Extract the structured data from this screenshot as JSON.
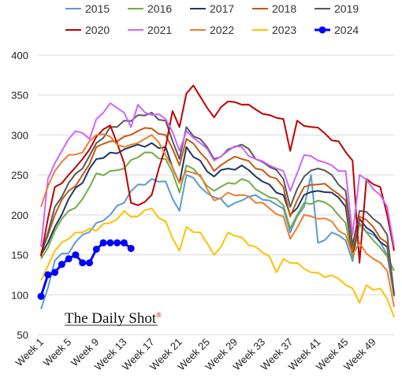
{
  "chart_data": {
    "type": "line",
    "title": "",
    "xlabel": "",
    "ylabel": "",
    "ylim": [
      50,
      400
    ],
    "yticks": [
      50,
      100,
      150,
      200,
      250,
      300,
      350,
      400
    ],
    "xlim": [
      1,
      52
    ],
    "xticks": [
      1,
      5,
      9,
      13,
      17,
      21,
      25,
      29,
      33,
      37,
      41,
      45,
      49
    ],
    "xtick_labels": [
      "Week 1",
      "Week 5",
      "Week 9",
      "Week 13",
      "Week 17",
      "Week 21",
      "Week 25",
      "Week 29",
      "Week 33",
      "Week 37",
      "Week 41",
      "Week 45",
      "Week 49"
    ],
    "grid": "horizontal",
    "legend_position": "top",
    "series": [
      {
        "name": "2015",
        "color": "#5b9bd5",
        "key": [
          [
            1,
            82
          ],
          [
            3,
            143
          ],
          [
            5,
            152
          ],
          [
            7,
            175
          ],
          [
            9,
            190
          ],
          [
            11,
            200
          ],
          [
            13,
            215
          ],
          [
            15,
            238
          ],
          [
            17,
            245
          ],
          [
            19,
            242
          ],
          [
            21,
            205
          ],
          [
            22,
            250
          ],
          [
            24,
            235
          ],
          [
            26,
            222
          ],
          [
            28,
            210
          ],
          [
            30,
            218
          ],
          [
            32,
            225
          ],
          [
            34,
            218
          ],
          [
            36,
            208
          ],
          [
            37,
            178
          ],
          [
            39,
            210
          ],
          [
            40,
            250
          ],
          [
            41,
            165
          ],
          [
            43,
            178
          ],
          [
            45,
            168
          ],
          [
            46,
            142
          ],
          [
            47,
            190
          ],
          [
            49,
            175
          ],
          [
            51,
            150
          ],
          [
            52,
            98
          ]
        ]
      },
      {
        "name": "2016",
        "color": "#70ad47",
        "key": [
          [
            1,
            145
          ],
          [
            3,
            180
          ],
          [
            5,
            205
          ],
          [
            7,
            220
          ],
          [
            9,
            252
          ],
          [
            11,
            255
          ],
          [
            13,
            258
          ],
          [
            15,
            272
          ],
          [
            17,
            278
          ],
          [
            19,
            270
          ],
          [
            21,
            228
          ],
          [
            22,
            262
          ],
          [
            24,
            248
          ],
          [
            26,
            230
          ],
          [
            28,
            240
          ],
          [
            30,
            245
          ],
          [
            32,
            232
          ],
          [
            34,
            222
          ],
          [
            36,
            212
          ],
          [
            37,
            183
          ],
          [
            39,
            215
          ],
          [
            41,
            218
          ],
          [
            43,
            210
          ],
          [
            45,
            190
          ],
          [
            46,
            145
          ],
          [
            47,
            188
          ],
          [
            49,
            168
          ],
          [
            51,
            148
          ],
          [
            52,
            130
          ]
        ]
      },
      {
        "name": "2017",
        "color": "#1f3864",
        "key": [
          [
            1,
            150
          ],
          [
            3,
            185
          ],
          [
            5,
            220
          ],
          [
            7,
            240
          ],
          [
            9,
            270
          ],
          [
            11,
            278
          ],
          [
            13,
            282
          ],
          [
            15,
            288
          ],
          [
            17,
            290
          ],
          [
            19,
            285
          ],
          [
            21,
            240
          ],
          [
            22,
            285
          ],
          [
            24,
            268
          ],
          [
            26,
            248
          ],
          [
            28,
            258
          ],
          [
            30,
            262
          ],
          [
            32,
            248
          ],
          [
            34,
            238
          ],
          [
            36,
            225
          ],
          [
            37,
            200
          ],
          [
            39,
            225
          ],
          [
            41,
            230
          ],
          [
            43,
            228
          ],
          [
            45,
            210
          ],
          [
            46,
            150
          ],
          [
            47,
            195
          ],
          [
            49,
            178
          ],
          [
            51,
            160
          ],
          [
            52,
            100
          ]
        ]
      },
      {
        "name": "2018",
        "color": "#c55a11",
        "key": [
          [
            1,
            152
          ],
          [
            3,
            200
          ],
          [
            5,
            230
          ],
          [
            7,
            250
          ],
          [
            9,
            285
          ],
          [
            11,
            292
          ],
          [
            13,
            298
          ],
          [
            15,
            305
          ],
          [
            17,
            308
          ],
          [
            19,
            300
          ],
          [
            21,
            262
          ],
          [
            22,
            295
          ],
          [
            24,
            278
          ],
          [
            26,
            255
          ],
          [
            28,
            268
          ],
          [
            30,
            270
          ],
          [
            32,
            258
          ],
          [
            34,
            248
          ],
          [
            36,
            235
          ],
          [
            37,
            198
          ],
          [
            39,
            235
          ],
          [
            41,
            238
          ],
          [
            43,
            232
          ],
          [
            45,
            218
          ],
          [
            46,
            155
          ],
          [
            47,
            198
          ],
          [
            49,
            185
          ],
          [
            51,
            165
          ],
          [
            52,
            98
          ]
        ]
      },
      {
        "name": "2019",
        "color": "#595959",
        "key": [
          [
            1,
            150
          ],
          [
            3,
            210
          ],
          [
            5,
            240
          ],
          [
            7,
            258
          ],
          [
            9,
            290
          ],
          [
            11,
            310
          ],
          [
            13,
            318
          ],
          [
            15,
            325
          ],
          [
            17,
            328
          ],
          [
            19,
            318
          ],
          [
            21,
            270
          ],
          [
            22,
            310
          ],
          [
            24,
            295
          ],
          [
            26,
            270
          ],
          [
            28,
            282
          ],
          [
            30,
            288
          ],
          [
            32,
            270
          ],
          [
            34,
            260
          ],
          [
            36,
            245
          ],
          [
            37,
            210
          ],
          [
            39,
            248
          ],
          [
            41,
            258
          ],
          [
            43,
            250
          ],
          [
            45,
            230
          ],
          [
            46,
            162
          ],
          [
            47,
            205
          ],
          [
            49,
            195
          ],
          [
            51,
            175
          ],
          [
            52,
            100
          ]
        ]
      },
      {
        "name": "2020",
        "color": "#c00000",
        "key": [
          [
            1,
            148
          ],
          [
            3,
            235
          ],
          [
            5,
            250
          ],
          [
            7,
            270
          ],
          [
            9,
            298
          ],
          [
            11,
            312
          ],
          [
            13,
            265
          ],
          [
            14,
            215
          ],
          [
            15,
            212
          ],
          [
            17,
            225
          ],
          [
            19,
            285
          ],
          [
            20,
            330
          ],
          [
            21,
            310
          ],
          [
            22,
            352
          ],
          [
            23,
            362
          ],
          [
            24,
            348
          ],
          [
            26,
            322
          ],
          [
            28,
            342
          ],
          [
            30,
            338
          ],
          [
            32,
            332
          ],
          [
            34,
            325
          ],
          [
            36,
            320
          ],
          [
            37,
            280
          ],
          [
            38,
            318
          ],
          [
            40,
            310
          ],
          [
            42,
            302
          ],
          [
            44,
            292
          ],
          [
            46,
            268
          ],
          [
            47,
            140
          ],
          [
            48,
            245
          ],
          [
            50,
            235
          ],
          [
            51,
            200
          ],
          [
            52,
            155
          ]
        ]
      },
      {
        "name": "2021",
        "color": "#cc66ff",
        "key": [
          [
            1,
            160
          ],
          [
            2,
            245
          ],
          [
            4,
            280
          ],
          [
            6,
            305
          ],
          [
            8,
            295
          ],
          [
            9,
            320
          ],
          [
            11,
            340
          ],
          [
            13,
            328
          ],
          [
            14,
            310
          ],
          [
            15,
            338
          ],
          [
            17,
            325
          ],
          [
            19,
            320
          ],
          [
            21,
            280
          ],
          [
            22,
            305
          ],
          [
            24,
            290
          ],
          [
            26,
            268
          ],
          [
            28,
            280
          ],
          [
            30,
            285
          ],
          [
            32,
            270
          ],
          [
            34,
            262
          ],
          [
            36,
            255
          ],
          [
            37,
            230
          ],
          [
            39,
            275
          ],
          [
            41,
            268
          ],
          [
            43,
            262
          ],
          [
            45,
            255
          ],
          [
            46,
            175
          ],
          [
            47,
            250
          ],
          [
            49,
            232
          ],
          [
            51,
            210
          ],
          [
            52,
            160
          ]
        ]
      },
      {
        "name": "2022",
        "color": "#ed7d31",
        "key": [
          [
            1,
            210
          ],
          [
            3,
            255
          ],
          [
            5,
            275
          ],
          [
            7,
            278
          ],
          [
            9,
            300
          ],
          [
            11,
            298
          ],
          [
            13,
            285
          ],
          [
            15,
            290
          ],
          [
            17,
            300
          ],
          [
            19,
            275
          ],
          [
            21,
            240
          ],
          [
            22,
            255
          ],
          [
            24,
            250
          ],
          [
            26,
            218
          ],
          [
            28,
            228
          ],
          [
            30,
            225
          ],
          [
            32,
            215
          ],
          [
            34,
            208
          ],
          [
            36,
            198
          ],
          [
            37,
            170
          ],
          [
            39,
            200
          ],
          [
            41,
            195
          ],
          [
            43,
            192
          ],
          [
            45,
            175
          ],
          [
            46,
            150
          ],
          [
            47,
            165
          ],
          [
            49,
            145
          ],
          [
            51,
            130
          ],
          [
            52,
            85
          ]
        ]
      },
      {
        "name": "2023",
        "color": "#ffc000",
        "key": [
          [
            1,
            118
          ],
          [
            3,
            155
          ],
          [
            5,
            170
          ],
          [
            7,
            178
          ],
          [
            9,
            180
          ],
          [
            11,
            190
          ],
          [
            13,
            205
          ],
          [
            15,
            198
          ],
          [
            17,
            208
          ],
          [
            19,
            192
          ],
          [
            21,
            155
          ],
          [
            22,
            185
          ],
          [
            24,
            178
          ],
          [
            26,
            150
          ],
          [
            28,
            178
          ],
          [
            30,
            172
          ],
          [
            32,
            160
          ],
          [
            34,
            148
          ],
          [
            35,
            128
          ],
          [
            36,
            145
          ],
          [
            38,
            140
          ],
          [
            40,
            128
          ],
          [
            42,
            122
          ],
          [
            44,
            120
          ],
          [
            46,
            108
          ],
          [
            47,
            90
          ],
          [
            48,
            112
          ],
          [
            50,
            108
          ],
          [
            51,
            95
          ],
          [
            52,
            72
          ]
        ]
      },
      {
        "name": "2024",
        "color": "#0000ff",
        "marker": "circle",
        "points": [
          [
            1,
            98
          ],
          [
            2,
            125
          ],
          [
            3,
            128
          ],
          [
            4,
            138
          ],
          [
            5,
            145
          ],
          [
            6,
            150
          ],
          [
            7,
            140
          ],
          [
            8,
            140
          ],
          [
            9,
            157
          ],
          [
            10,
            165
          ],
          [
            11,
            165
          ],
          [
            12,
            165
          ],
          [
            13,
            165
          ],
          [
            14,
            158
          ]
        ]
      }
    ]
  },
  "branding": {
    "text": "The Daily Shot",
    "mark": "®"
  }
}
